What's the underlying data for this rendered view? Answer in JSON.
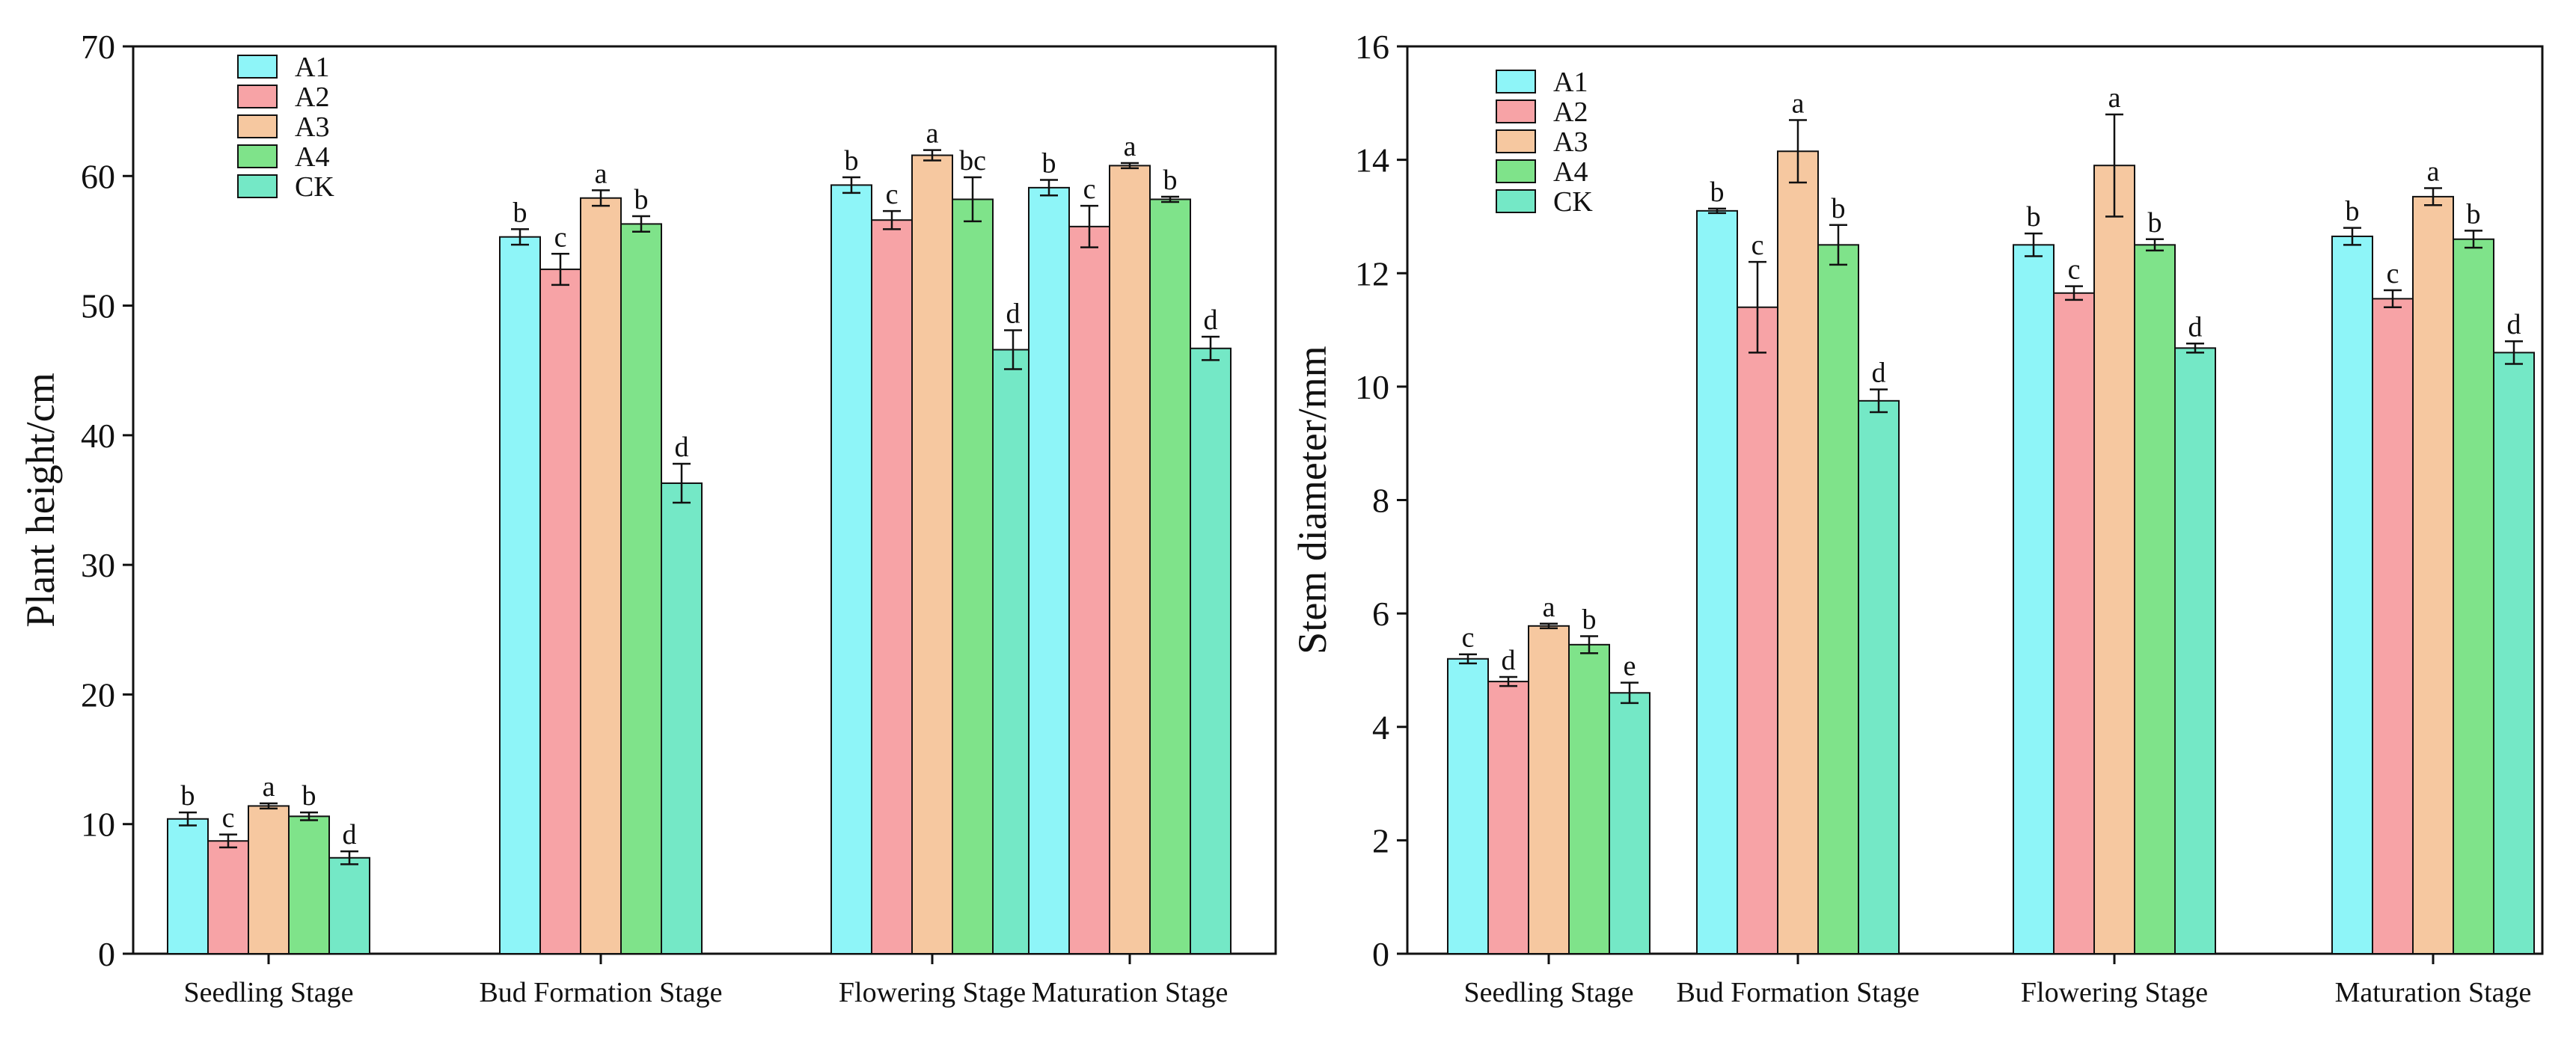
{
  "legend_colors": {
    "A1": "#8ef5f8",
    "A2": "#f7a3a6",
    "A3": "#f6c8a0",
    "A4": "#7fe38a",
    "CK": "#74e8c6"
  },
  "chart_data": [
    {
      "type": "bar",
      "ylabel": "Plant height/cm",
      "xlabel": "",
      "ylim": [
        0,
        70
      ],
      "yticks": [
        0,
        10,
        20,
        30,
        40,
        50,
        60,
        70
      ],
      "ytick_labels": [
        "0",
        "10",
        "20",
        "30",
        "40",
        "50",
        "60",
        "70"
      ],
      "categories": [
        "Seedling Stage",
        "Bud Formation Stage",
        "Flowering Stage",
        "Maturation Stage"
      ],
      "legend_position": "top-left",
      "series": [
        {
          "name": "A1",
          "values": [
            10.4,
            55.3,
            59.3,
            59.1
          ],
          "errors": [
            0.5,
            0.6,
            0.6,
            0.6
          ],
          "letters": [
            "b",
            "b",
            "b",
            "b"
          ]
        },
        {
          "name": "A2",
          "values": [
            8.7,
            52.8,
            56.6,
            56.1
          ],
          "errors": [
            0.5,
            1.2,
            0.7,
            1.6
          ],
          "letters": [
            "c",
            "c",
            "c",
            "c"
          ]
        },
        {
          "name": "A3",
          "values": [
            11.4,
            58.3,
            61.6,
            60.8
          ],
          "errors": [
            0.2,
            0.6,
            0.4,
            0.2
          ],
          "letters": [
            "a",
            "a",
            "a",
            "a"
          ]
        },
        {
          "name": "A4",
          "values": [
            10.6,
            56.3,
            58.2,
            58.2
          ],
          "errors": [
            0.3,
            0.6,
            1.7,
            0.2
          ],
          "letters": [
            "b",
            "b",
            "bc",
            "b"
          ]
        },
        {
          "name": "CK",
          "values": [
            7.4,
            36.3,
            46.6,
            46.7
          ],
          "errors": [
            0.5,
            1.5,
            1.5,
            0.9
          ],
          "letters": [
            "d",
            "d",
            "d",
            "d"
          ]
        }
      ]
    },
    {
      "type": "bar",
      "ylabel": "Stem diameter/mm",
      "xlabel": "",
      "ylim": [
        0,
        16
      ],
      "yticks": [
        0,
        2,
        4,
        6,
        8,
        10,
        12,
        14,
        16
      ],
      "ytick_labels": [
        "0",
        "2",
        "4",
        "6",
        "8",
        "10",
        "12",
        "14",
        "16"
      ],
      "categories": [
        "Seedling Stage",
        "Bud Formation Stage",
        "Flowering Stage",
        "Maturation Stage"
      ],
      "legend_position": "top-left",
      "series": [
        {
          "name": "A1",
          "values": [
            5.2,
            13.1,
            12.5,
            12.65
          ],
          "errors": [
            0.08,
            0.04,
            0.2,
            0.15
          ],
          "letters": [
            "c",
            "b",
            "b",
            "b"
          ]
        },
        {
          "name": "A2",
          "values": [
            4.8,
            11.4,
            11.65,
            11.55
          ],
          "errors": [
            0.08,
            0.8,
            0.12,
            0.15
          ],
          "letters": [
            "d",
            "c",
            "c",
            "c"
          ]
        },
        {
          "name": "A3",
          "values": [
            5.78,
            14.15,
            13.9,
            13.35
          ],
          "errors": [
            0.04,
            0.55,
            0.9,
            0.15
          ],
          "letters": [
            "a",
            "a",
            "a",
            "a"
          ]
        },
        {
          "name": "A4",
          "values": [
            5.45,
            12.5,
            12.5,
            12.6
          ],
          "errors": [
            0.15,
            0.35,
            0.1,
            0.15
          ],
          "letters": [
            "b",
            "b",
            "b",
            "b"
          ]
        },
        {
          "name": "CK",
          "values": [
            4.6,
            9.75,
            10.68,
            10.6
          ],
          "errors": [
            0.18,
            0.2,
            0.08,
            0.2
          ],
          "letters": [
            "e",
            "d",
            "d",
            "d"
          ]
        }
      ]
    }
  ]
}
